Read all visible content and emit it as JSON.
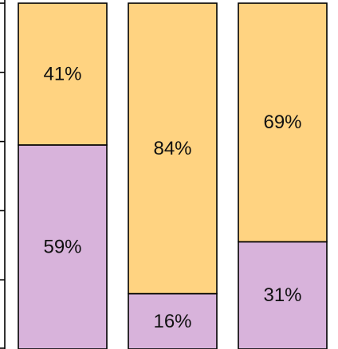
{
  "chart_data": {
    "type": "bar",
    "stacked": true,
    "normalized": true,
    "title": "",
    "xlabel": "",
    "ylabel": "",
    "ylim": [
      0,
      100
    ],
    "grid": false,
    "categories": [
      "",
      "",
      ""
    ],
    "series": [
      {
        "values": [
          59,
          16,
          31
        ],
        "labels": [
          "59%",
          "16%",
          "31%"
        ],
        "color": "#D8B3DB"
      },
      {
        "values": [
          41,
          84,
          69
        ],
        "labels": [
          "41%",
          "84%",
          "69%"
        ],
        "color": "#FFD381"
      }
    ]
  }
}
